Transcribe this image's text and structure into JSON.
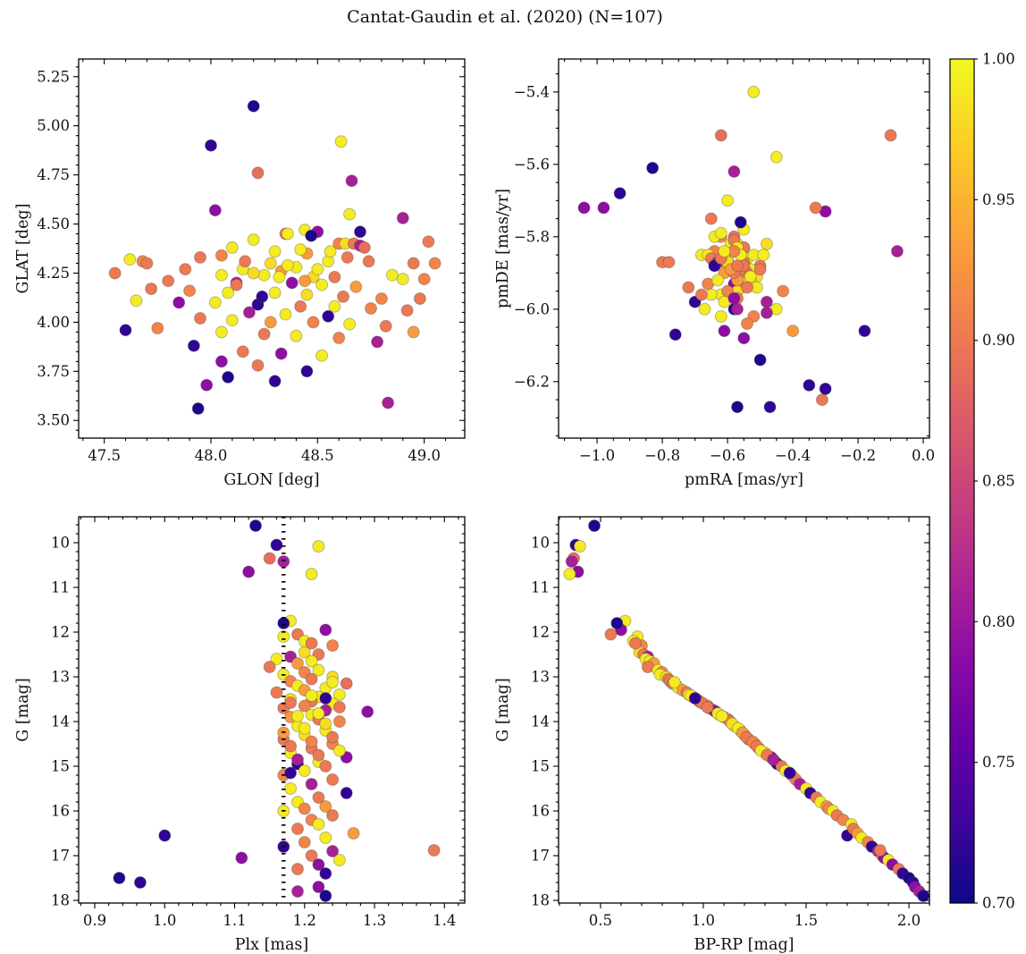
{
  "title": "Cantat-Gaudin et al. (2020) (N=107)",
  "colormap": {
    "name": "plasma",
    "stops": [
      "#0d0887",
      "#41049d",
      "#6a00a8",
      "#8f0da4",
      "#b12a90",
      "#cc4778",
      "#e16462",
      "#f2844b",
      "#fca636",
      "#fcce25",
      "#f0f921"
    ]
  },
  "colorbar": {
    "vmin": 0.7,
    "vmax": 1.0,
    "ticks": {
      "values": [
        0.7,
        0.75,
        0.8,
        0.85,
        0.9,
        0.95,
        1.0
      ],
      "labels": [
        "0.70",
        "0.75",
        "0.80",
        "0.85",
        "0.90",
        "0.95",
        "1.00"
      ]
    }
  },
  "chart_data": {
    "type": "scatter",
    "figure_title": "Cantat-Gaudin et al. (2020) (N=107)",
    "n_points": 107,
    "color_field": "p_membership",
    "color_map": "plasma",
    "color_range": [
      0.7,
      1.0
    ],
    "star_fields": [
      "glon_deg",
      "glat_deg",
      "pmra_masyr",
      "pmde_masyr",
      "plx_mas",
      "g_mag",
      "bp_rp_mag",
      "p_membership"
    ],
    "stars": [
      [
        48.2,
        5.1,
        -0.83,
        -5.61,
        1.13,
        9.62,
        0.47,
        0.71
      ],
      [
        48.0,
        4.9,
        -0.93,
        -5.68,
        1.16,
        10.05,
        0.38,
        0.72
      ],
      [
        48.61,
        4.92,
        -0.52,
        -5.4,
        1.22,
        10.08,
        0.4,
        0.99
      ],
      [
        48.22,
        4.76,
        -0.62,
        -5.52,
        1.15,
        10.35,
        0.37,
        0.89
      ],
      [
        48.66,
        4.72,
        -0.58,
        -5.62,
        1.17,
        10.42,
        0.36,
        0.81
      ],
      [
        48.02,
        4.57,
        -1.04,
        -5.72,
        1.12,
        10.65,
        0.39,
        0.79
      ],
      [
        48.65,
        4.55,
        -0.45,
        -5.58,
        1.21,
        10.7,
        0.35,
        0.99
      ],
      [
        48.44,
        4.47,
        -0.6,
        -5.7,
        1.18,
        11.75,
        0.62,
        0.99
      ],
      [
        48.5,
        4.46,
        -0.3,
        -5.73,
        1.23,
        11.95,
        0.6,
        0.79
      ],
      [
        48.35,
        4.45,
        -0.65,
        -5.75,
        1.19,
        12.05,
        0.55,
        0.9
      ],
      [
        48.2,
        4.42,
        -0.55,
        -5.78,
        1.17,
        12.1,
        0.68,
        0.99
      ],
      [
        48.6,
        4.4,
        -0.62,
        -5.8,
        1.24,
        12.3,
        0.7,
        0.91
      ],
      [
        48.63,
        4.4,
        -0.48,
        -5.82,
        1.2,
        12.45,
        0.69,
        0.98
      ],
      [
        48.67,
        4.4,
        -0.58,
        -5.84,
        1.22,
        12.5,
        0.71,
        0.9
      ],
      [
        48.7,
        4.39,
        -0.55,
        -5.83,
        1.18,
        12.55,
        0.73,
        0.81
      ],
      [
        48.1,
        4.38,
        -0.68,
        -5.85,
        1.16,
        12.6,
        0.72,
        0.99
      ],
      [
        48.3,
        4.36,
        -0.54,
        -5.86,
        1.21,
        12.65,
        0.74,
        0.99
      ],
      [
        48.45,
        4.35,
        -0.57,
        -5.84,
        1.19,
        12.7,
        0.76,
        0.93
      ],
      [
        47.95,
        4.33,
        -0.8,
        -5.87,
        1.15,
        12.78,
        0.73,
        0.9
      ],
      [
        47.62,
        4.32,
        -0.52,
        -5.85,
        1.22,
        12.85,
        0.78,
        0.99
      ],
      [
        47.68,
        4.31,
        -0.59,
        -5.88,
        1.2,
        12.9,
        0.8,
        0.91
      ],
      [
        48.55,
        4.31,
        -0.56,
        -5.83,
        1.17,
        12.95,
        0.79,
        0.99
      ],
      [
        48.28,
        4.3,
        -0.61,
        -5.86,
        1.24,
        13.0,
        0.82,
        0.98
      ],
      [
        48.95,
        4.3,
        -0.5,
        -5.88,
        1.21,
        13.05,
        0.83,
        0.9
      ],
      [
        49.05,
        4.3,
        -0.64,
        -5.84,
        1.18,
        13.1,
        0.84,
        0.91
      ],
      [
        48.72,
        4.38,
        -0.58,
        -5.8,
        1.26,
        13.15,
        0.85,
        0.89
      ],
      [
        48.4,
        4.28,
        -0.53,
        -5.89,
        1.19,
        13.2,
        0.87,
        0.99
      ],
      [
        48.15,
        4.27,
        -0.66,
        -5.85,
        1.23,
        13.25,
        0.88,
        0.99
      ],
      [
        48.33,
        4.26,
        -0.55,
        -5.9,
        1.2,
        13.3,
        0.9,
        0.93
      ],
      [
        47.55,
        4.25,
        -0.78,
        -5.87,
        1.16,
        13.35,
        0.92,
        0.9
      ],
      [
        48.05,
        4.24,
        -0.57,
        -5.82,
        1.25,
        13.4,
        0.93,
        0.99
      ],
      [
        48.25,
        4.24,
        -0.6,
        -5.88,
        1.22,
        13.45,
        0.95,
        0.99
      ],
      [
        48.48,
        4.23,
        -0.51,
        -5.91,
        1.18,
        13.5,
        0.97,
        0.98
      ],
      [
        48.58,
        4.23,
        -0.65,
        -5.86,
        1.21,
        13.55,
        0.98,
        0.9
      ],
      [
        48.9,
        4.22,
        -0.56,
        -5.92,
        1.24,
        13.6,
        1.0,
        0.99
      ],
      [
        49.0,
        4.22,
        -0.59,
        -5.84,
        1.2,
        13.65,
        1.02,
        0.91
      ],
      [
        47.8,
        4.21,
        -0.54,
        -5.9,
        1.17,
        13.7,
        1.03,
        0.9
      ],
      [
        48.12,
        4.2,
        -0.63,
        -5.87,
        1.23,
        13.75,
        1.05,
        0.81
      ],
      [
        48.38,
        4.2,
        -0.58,
        -5.93,
        1.29,
        13.78,
        1.06,
        0.79
      ],
      [
        48.52,
        4.19,
        -0.49,
        -5.85,
        1.21,
        13.85,
        1.08,
        0.99
      ],
      [
        48.68,
        4.18,
        -0.61,
        -5.9,
        1.18,
        13.9,
        1.1,
        0.93
      ],
      [
        47.72,
        4.17,
        -0.56,
        -5.94,
        1.22,
        13.95,
        1.12,
        0.9
      ],
      [
        47.9,
        4.16,
        -0.64,
        -5.88,
        1.25,
        14.0,
        1.13,
        0.91
      ],
      [
        48.08,
        4.15,
        -0.53,
        -5.92,
        1.19,
        14.1,
        1.15,
        0.99
      ],
      [
        48.3,
        4.15,
        -0.6,
        -5.86,
        1.23,
        14.2,
        1.18,
        0.99
      ],
      [
        48.45,
        4.14,
        -0.57,
        -5.95,
        1.2,
        14.3,
        1.2,
        0.98
      ],
      [
        48.62,
        4.13,
        -0.5,
        -5.89,
        1.17,
        14.4,
        1.22,
        0.9
      ],
      [
        48.8,
        4.12,
        -0.66,
        -5.93,
        1.24,
        14.5,
        1.25,
        0.91
      ],
      [
        48.98,
        4.12,
        -0.55,
        -5.87,
        1.21,
        14.6,
        1.27,
        0.9
      ],
      [
        47.65,
        4.11,
        -0.62,
        -5.96,
        1.18,
        14.7,
        1.3,
        0.99
      ],
      [
        47.85,
        4.1,
        -0.98,
        -5.72,
        1.26,
        14.8,
        1.33,
        0.79
      ],
      [
        48.02,
        4.1,
        -0.51,
        -5.94,
        1.22,
        14.9,
        1.35,
        0.99
      ],
      [
        48.22,
        4.09,
        -0.64,
        -5.88,
        1.19,
        14.95,
        1.36,
        0.72
      ],
      [
        48.42,
        4.08,
        -0.57,
        -5.97,
        1.23,
        15.0,
        1.38,
        0.9
      ],
      [
        48.58,
        4.08,
        -0.53,
        -5.91,
        1.2,
        15.1,
        1.4,
        0.99
      ],
      [
        48.75,
        4.07,
        -0.6,
        -5.95,
        1.17,
        15.2,
        1.43,
        0.91
      ],
      [
        48.92,
        4.06,
        -0.56,
        -5.89,
        1.24,
        15.3,
        1.45,
        0.9
      ],
      [
        48.18,
        4.05,
        -0.48,
        -5.98,
        1.21,
        15.4,
        1.47,
        0.81
      ],
      [
        48.35,
        4.04,
        -0.63,
        -5.92,
        1.18,
        15.5,
        1.5,
        0.99
      ],
      [
        48.55,
        4.03,
        -0.58,
        -6.0,
        1.26,
        15.6,
        1.52,
        0.72
      ],
      [
        47.95,
        4.02,
        -0.54,
        -5.94,
        1.22,
        15.7,
        1.55,
        0.9
      ],
      [
        48.1,
        4.01,
        -0.61,
        -5.98,
        1.19,
        15.8,
        1.57,
        0.99
      ],
      [
        48.28,
        4.0,
        -0.57,
        -5.92,
        1.23,
        15.9,
        1.6,
        0.93
      ],
      [
        48.48,
        4.0,
        -0.52,
        -6.02,
        1.2,
        15.95,
        1.61,
        0.91
      ],
      [
        48.65,
        3.99,
        -0.65,
        -5.96,
        1.17,
        16.0,
        1.63,
        0.99
      ],
      [
        48.82,
        3.98,
        -0.58,
        -5.9,
        1.24,
        16.1,
        1.65,
        0.9
      ],
      [
        47.75,
        3.97,
        -0.54,
        -6.04,
        1.21,
        16.2,
        1.68,
        0.91
      ],
      [
        47.6,
        3.96,
        -0.7,
        -5.98,
        1.0,
        16.55,
        1.7,
        0.72
      ],
      [
        48.05,
        3.95,
        -0.45,
        -6.0,
        1.22,
        16.3,
        1.72,
        0.99
      ],
      [
        48.25,
        3.94,
        -0.72,
        -5.94,
        1.19,
        16.4,
        1.73,
        0.9
      ],
      [
        48.95,
        3.95,
        -0.4,
        -6.06,
        1.27,
        16.5,
        1.75,
        0.93
      ],
      [
        48.4,
        3.93,
        -0.67,
        -6.0,
        1.23,
        16.6,
        1.77,
        0.99
      ],
      [
        48.6,
        3.92,
        -0.43,
        -5.95,
        1.2,
        16.7,
        1.8,
        0.91
      ],
      [
        47.92,
        3.88,
        -0.76,
        -6.07,
        1.17,
        16.8,
        1.82,
        0.72
      ],
      [
        48.78,
        3.9,
        -0.48,
        -6.01,
        1.24,
        16.9,
        1.85,
        0.81
      ],
      [
        48.15,
        3.85,
        -0.68,
        -5.96,
        1.21,
        17.0,
        1.87,
        0.9
      ],
      [
        48.33,
        3.84,
        -0.55,
        -6.08,
        1.11,
        17.05,
        1.88,
        0.79
      ],
      [
        48.52,
        3.83,
        -0.62,
        -6.02,
        1.25,
        17.1,
        1.9,
        0.99
      ],
      [
        48.05,
        3.8,
        -0.58,
        -5.97,
        1.22,
        17.2,
        1.92,
        0.79
      ],
      [
        48.22,
        3.78,
        -0.31,
        -6.25,
        1.19,
        17.3,
        1.95,
        0.9
      ],
      [
        48.45,
        3.75,
        -0.35,
        -6.21,
        1.23,
        17.4,
        1.97,
        0.72
      ],
      [
        48.08,
        3.72,
        -0.57,
        -6.27,
        0.935,
        17.5,
        2.0,
        0.71
      ],
      [
        48.3,
        3.7,
        -0.47,
        -6.27,
        0.965,
        17.6,
        2.02,
        0.72
      ],
      [
        47.98,
        3.68,
        -0.61,
        -6.06,
        1.22,
        17.7,
        2.03,
        0.79
      ],
      [
        48.83,
        3.59,
        -0.57,
        -6.0,
        1.19,
        17.8,
        2.05,
        0.81
      ],
      [
        47.94,
        3.56,
        -0.5,
        -6.14,
        1.23,
        17.9,
        2.07,
        0.71
      ],
      [
        48.36,
        4.45,
        -0.64,
        -5.8,
        1.2,
        12.2,
        0.66,
        0.99
      ],
      [
        48.47,
        4.44,
        -0.56,
        -5.76,
        1.17,
        11.8,
        0.58,
        0.71
      ],
      [
        48.42,
        4.37,
        -0.59,
        -5.82,
        1.24,
        13.12,
        0.86,
        0.99
      ],
      [
        48.56,
        4.36,
        -0.62,
        -5.79,
        1.21,
        13.42,
        0.94,
        0.99
      ],
      [
        48.64,
        4.33,
        -0.55,
        -5.83,
        1.18,
        13.58,
        0.99,
        0.9
      ],
      [
        48.74,
        4.31,
        -0.58,
        -5.81,
        1.25,
        13.68,
        1.02,
        0.9
      ],
      [
        48.36,
        4.29,
        -0.61,
        -5.85,
        1.22,
        13.82,
        1.07,
        0.99
      ],
      [
        48.5,
        4.27,
        -0.57,
        -5.83,
        1.19,
        13.88,
        1.09,
        0.99
      ],
      [
        48.2,
        4.25,
        -0.6,
        -5.87,
        1.23,
        14.05,
        1.14,
        0.98
      ],
      [
        48.32,
        4.23,
        -0.56,
        -5.85,
        1.2,
        14.15,
        1.17,
        0.99
      ],
      [
        48.44,
        4.21,
        -0.59,
        -5.89,
        1.17,
        14.25,
        1.19,
        0.93
      ],
      [
        48.12,
        4.19,
        -0.62,
        -5.86,
        1.24,
        14.35,
        1.21,
        0.9
      ],
      [
        48.05,
        4.34,
        -0.58,
        -5.84,
        1.21,
        14.45,
        1.24,
        0.91
      ],
      [
        47.88,
        4.27,
        -0.55,
        -5.88,
        1.18,
        14.55,
        1.26,
        0.9
      ],
      [
        48.85,
        4.24,
        -0.61,
        -5.84,
        1.25,
        14.65,
        1.28,
        0.99
      ],
      [
        49.02,
        4.41,
        -0.57,
        -5.88,
        1.22,
        14.75,
        1.31,
        0.9
      ],
      [
        48.9,
        4.53,
        -0.08,
        -5.84,
        1.19,
        14.85,
        1.34,
        0.81
      ],
      [
        47.7,
        4.3,
        -0.33,
        -5.72,
        1.385,
        16.88,
        1.86,
        0.9
      ],
      [
        48.16,
        4.31,
        -0.1,
        -5.52,
        1.21,
        12.25,
        0.67,
        0.9
      ],
      [
        48.24,
        4.13,
        -0.18,
        -6.06,
        1.18,
        15.15,
        1.42,
        0.72
      ],
      [
        48.7,
        4.46,
        -0.3,
        -6.22,
        1.23,
        13.48,
        0.96,
        0.72
      ]
    ],
    "panels": [
      {
        "name": "glat-vs-glon",
        "xlabel": "GLON [deg]",
        "ylabel": "GLAT [deg]",
        "xi": 0,
        "yi": 1,
        "xlim": [
          47.38,
          49.19
        ],
        "ylim": [
          3.41,
          5.34
        ],
        "xticks": {
          "values": [
            47.5,
            48.0,
            48.5,
            49.0
          ],
          "labels": [
            "47.5",
            "48.0",
            "48.5",
            "49.0"
          ]
        },
        "yticks": {
          "values": [
            3.5,
            3.75,
            4.0,
            4.25,
            4.5,
            4.75,
            5.0,
            5.25
          ],
          "labels": [
            "3.50",
            "3.75",
            "4.00",
            "4.25",
            "4.50",
            "4.75",
            "5.00",
            "5.25"
          ]
        },
        "xminor": 0.1,
        "yminor": 0.05
      },
      {
        "name": "pmde-vs-pmra",
        "xlabel": "pmRA [mas/yr]",
        "ylabel": "pmDE [mas/yr]",
        "xi": 2,
        "yi": 3,
        "xlim": [
          -1.118,
          0.019
        ],
        "ylim": [
          -6.356,
          -5.309
        ],
        "xticks": {
          "values": [
            -1.0,
            -0.8,
            -0.6,
            -0.4,
            -0.2,
            0.0
          ],
          "labels": [
            "−1.0",
            "−0.8",
            "−0.6",
            "−0.4",
            "−0.2",
            "0.0"
          ]
        },
        "yticks": {
          "values": [
            -6.2,
            -6.0,
            -5.8,
            -5.6,
            -5.4
          ],
          "labels": [
            "−6.2",
            "−6.0",
            "−5.8",
            "−5.6",
            "−5.4"
          ]
        },
        "xminor": 0.05,
        "yminor": 0.05
      },
      {
        "name": "g-vs-plx",
        "xlabel": "Plx [mas]",
        "ylabel": "G [mag]",
        "xi": 4,
        "yi": 5,
        "xlim": [
          0.877,
          1.429
        ],
        "ylim": [
          18.06,
          9.42
        ],
        "xticks": {
          "values": [
            0.9,
            1.0,
            1.1,
            1.2,
            1.3,
            1.4
          ],
          "labels": [
            "0.9",
            "1.0",
            "1.1",
            "1.2",
            "1.3",
            "1.4"
          ]
        },
        "yticks": {
          "values": [
            10,
            11,
            12,
            13,
            14,
            15,
            16,
            17,
            18
          ],
          "labels": [
            "10",
            "11",
            "12",
            "13",
            "14",
            "15",
            "16",
            "17",
            "18"
          ]
        },
        "xminor": 0.02,
        "yminor": 0.2,
        "vline": {
          "x": 1.17,
          "style": "dotted",
          "color": "#000000"
        }
      },
      {
        "name": "g-vs-bprp",
        "xlabel": "BP-RP [mag]",
        "ylabel": "G [mag]",
        "xi": 6,
        "yi": 5,
        "xlim": [
          0.296,
          2.1
        ],
        "ylim": [
          18.06,
          9.42
        ],
        "xticks": {
          "values": [
            0.5,
            1.0,
            1.5,
            2.0
          ],
          "labels": [
            "0.5",
            "1.0",
            "1.5",
            "2.0"
          ]
        },
        "yticks": {
          "values": [
            10,
            11,
            12,
            13,
            14,
            15,
            16,
            17,
            18
          ],
          "labels": [
            "10",
            "11",
            "12",
            "13",
            "14",
            "15",
            "16",
            "17",
            "18"
          ]
        },
        "xminor": 0.1,
        "yminor": 0.2
      }
    ]
  }
}
